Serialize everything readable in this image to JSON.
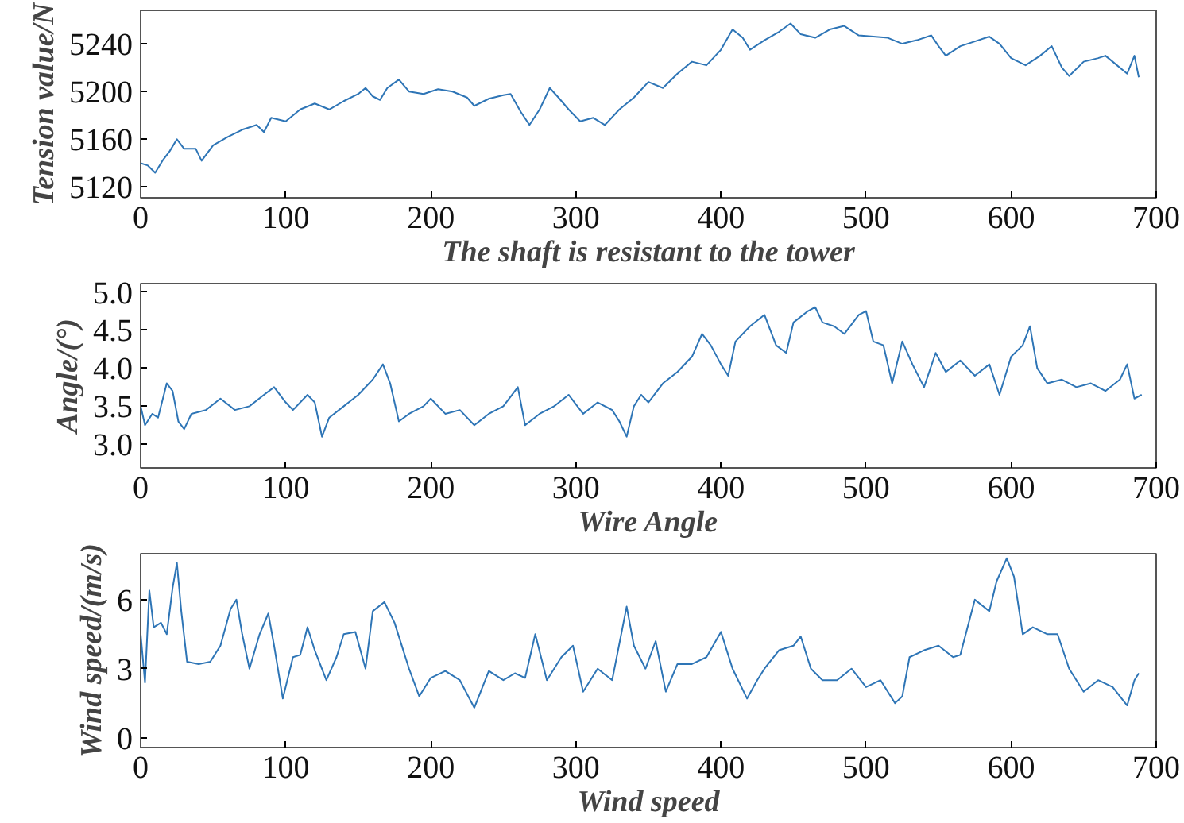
{
  "chart_data": [
    {
      "type": "line",
      "xlabel": "The shaft is resistant to the tower",
      "ylabel": "Tension value/N",
      "xlim": [
        0,
        700
      ],
      "ylim": [
        5111,
        5268
      ],
      "xticks": [
        0,
        100,
        200,
        300,
        400,
        500,
        600,
        700
      ],
      "yticks": [
        5120,
        5160,
        5200,
        5240
      ],
      "grid": false,
      "x": [
        0,
        5,
        10,
        15,
        20,
        25,
        30,
        38,
        42,
        50,
        60,
        70,
        80,
        85,
        90,
        100,
        110,
        120,
        130,
        140,
        150,
        155,
        160,
        165,
        170,
        178,
        185,
        195,
        205,
        215,
        225,
        230,
        240,
        250,
        255,
        262,
        268,
        275,
        282,
        288,
        295,
        303,
        312,
        320,
        330,
        340,
        350,
        360,
        370,
        380,
        390,
        400,
        408,
        415,
        420,
        430,
        440,
        448,
        455,
        465,
        475,
        485,
        495,
        505,
        515,
        525,
        535,
        545,
        550,
        555,
        565,
        575,
        585,
        592,
        600,
        610,
        620,
        628,
        635,
        640,
        650,
        660,
        665,
        670,
        680,
        685,
        688
      ],
      "series": [
        {
          "color": "#2e75b6",
          "values": [
            5140,
            5138,
            5132,
            5142,
            5150,
            5160,
            5152,
            5152,
            5142,
            5155,
            5162,
            5168,
            5172,
            5166,
            5178,
            5175,
            5185,
            5190,
            5185,
            5192,
            5198,
            5203,
            5196,
            5193,
            5203,
            5210,
            5200,
            5198,
            5202,
            5200,
            5195,
            5188,
            5194,
            5197,
            5198,
            5183,
            5172,
            5185,
            5203,
            5195,
            5185,
            5175,
            5178,
            5172,
            5185,
            5195,
            5208,
            5203,
            5215,
            5225,
            5222,
            5235,
            5252,
            5245,
            5235,
            5243,
            5250,
            5257,
            5248,
            5245,
            5252,
            5255,
            5247,
            5246,
            5245,
            5240,
            5243,
            5247,
            5238,
            5230,
            5238,
            5242,
            5246,
            5240,
            5228,
            5222,
            5230,
            5238,
            5220,
            5213,
            5225,
            5228,
            5230,
            5225,
            5215,
            5230,
            5212
          ]
        }
      ]
    },
    {
      "type": "line",
      "xlabel": "Wire Angle",
      "ylabel": "Angle/(°)",
      "xlim": [
        0,
        700
      ],
      "ylim": [
        2.69,
        5.11
      ],
      "xticks": [
        0,
        100,
        200,
        300,
        400,
        500,
        600,
        700
      ],
      "yticks": [
        {
          "value": 3,
          "label": "3.0"
        },
        3.5,
        {
          "value": 4,
          "label": "4.0"
        },
        4.5,
        {
          "value": 5,
          "label": "5.0"
        }
      ],
      "grid": false,
      "x": [
        0,
        3,
        8,
        12,
        18,
        22,
        26,
        30,
        35,
        45,
        55,
        65,
        75,
        85,
        92,
        100,
        105,
        115,
        120,
        125,
        130,
        140,
        150,
        160,
        167,
        172,
        178,
        185,
        195,
        200,
        210,
        220,
        230,
        240,
        250,
        260,
        265,
        275,
        285,
        295,
        305,
        315,
        325,
        330,
        335,
        340,
        345,
        350,
        360,
        370,
        380,
        387,
        393,
        400,
        405,
        410,
        420,
        430,
        438,
        445,
        450,
        460,
        465,
        470,
        478,
        485,
        495,
        500,
        505,
        512,
        518,
        525,
        532,
        540,
        548,
        555,
        565,
        575,
        585,
        592,
        600,
        608,
        613,
        618,
        625,
        635,
        645,
        655,
        665,
        675,
        680,
        685,
        690
      ],
      "series": [
        {
          "color": "#2e75b6",
          "values": [
            3.5,
            3.25,
            3.4,
            3.35,
            3.8,
            3.7,
            3.3,
            3.2,
            3.4,
            3.45,
            3.6,
            3.45,
            3.5,
            3.65,
            3.75,
            3.55,
            3.45,
            3.65,
            3.55,
            3.1,
            3.35,
            3.5,
            3.65,
            3.85,
            4.05,
            3.8,
            3.3,
            3.4,
            3.5,
            3.6,
            3.4,
            3.45,
            3.25,
            3.4,
            3.5,
            3.75,
            3.25,
            3.4,
            3.5,
            3.65,
            3.4,
            3.55,
            3.45,
            3.3,
            3.1,
            3.5,
            3.65,
            3.55,
            3.8,
            3.95,
            4.15,
            4.45,
            4.3,
            4.05,
            3.9,
            4.35,
            4.55,
            4.7,
            4.3,
            4.2,
            4.6,
            4.75,
            4.8,
            4.6,
            4.55,
            4.45,
            4.7,
            4.75,
            4.35,
            4.3,
            3.8,
            4.35,
            4.05,
            3.75,
            4.2,
            3.95,
            4.1,
            3.9,
            4.05,
            3.65,
            4.15,
            4.3,
            4.55,
            4.0,
            3.8,
            3.85,
            3.75,
            3.8,
            3.7,
            3.85,
            4.05,
            3.6,
            3.65
          ]
        }
      ]
    },
    {
      "type": "line",
      "xlabel": "Wind speed",
      "ylabel": "Wind speed/(m/s)",
      "xlim": [
        0,
        700
      ],
      "ylim": [
        -0.43,
        8.0
      ],
      "xticks": [
        0,
        100,
        200,
        300,
        400,
        500,
        600,
        700
      ],
      "yticks": [
        0,
        3,
        6
      ],
      "grid": false,
      "x": [
        0,
        3,
        6,
        9,
        14,
        18,
        22,
        25,
        28,
        32,
        40,
        48,
        55,
        62,
        66,
        70,
        75,
        82,
        88,
        92,
        98,
        105,
        110,
        115,
        120,
        128,
        135,
        140,
        148,
        155,
        160,
        168,
        175,
        185,
        192,
        200,
        210,
        220,
        230,
        240,
        250,
        258,
        265,
        272,
        280,
        290,
        298,
        305,
        315,
        325,
        335,
        340,
        348,
        355,
        362,
        370,
        380,
        390,
        400,
        408,
        418,
        425,
        430,
        440,
        450,
        455,
        462,
        470,
        480,
        490,
        500,
        510,
        520,
        525,
        530,
        540,
        550,
        560,
        565,
        575,
        585,
        590,
        597,
        602,
        608,
        615,
        625,
        632,
        640,
        650,
        660,
        670,
        680,
        685,
        688
      ],
      "series": [
        {
          "color": "#2e75b6",
          "values": [
            4.5,
            2.4,
            6.4,
            4.8,
            5.0,
            4.5,
            6.5,
            7.6,
            5.5,
            3.3,
            3.2,
            3.3,
            4.0,
            5.6,
            6.0,
            4.5,
            3.0,
            4.5,
            5.4,
            4.0,
            1.7,
            3.5,
            3.6,
            4.8,
            3.8,
            2.5,
            3.5,
            4.5,
            4.6,
            3.0,
            5.5,
            5.9,
            5.0,
            3.0,
            1.8,
            2.6,
            2.9,
            2.5,
            1.3,
            2.9,
            2.5,
            2.8,
            2.6,
            4.5,
            2.5,
            3.5,
            4.0,
            2.0,
            3.0,
            2.5,
            5.7,
            4.0,
            3.0,
            4.2,
            2.0,
            3.2,
            3.2,
            3.5,
            4.6,
            3.0,
            1.7,
            2.5,
            3.0,
            3.8,
            4.0,
            4.4,
            3.0,
            2.5,
            2.5,
            3.0,
            2.2,
            2.5,
            1.5,
            1.8,
            3.5,
            3.8,
            4.0,
            3.5,
            3.6,
            6.0,
            5.5,
            6.8,
            7.8,
            7.0,
            4.5,
            4.8,
            4.5,
            4.5,
            3.0,
            2.0,
            2.5,
            2.2,
            1.4,
            2.5,
            2.8
          ]
        }
      ]
    }
  ]
}
